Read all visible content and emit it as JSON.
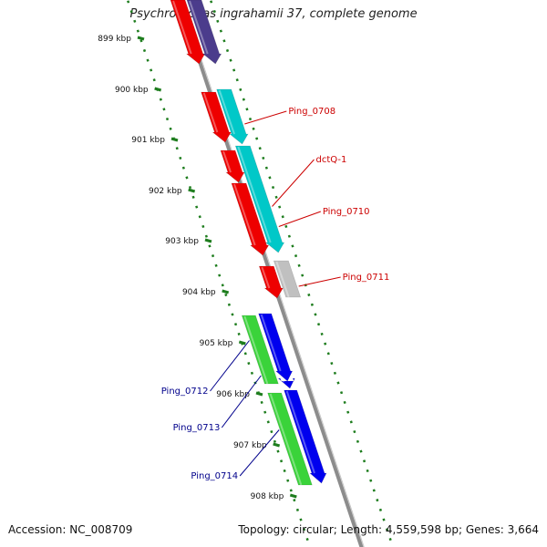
{
  "title": "Psychromonas ingrahamii 37, complete genome",
  "footer": {
    "accession": "Accession: NC_008709",
    "stats": "Topology: circular; Length: 4,559,598 bp; Genes: 3,664"
  },
  "colors": {
    "backbone": "#8c8c8c",
    "ruler": "#1e7d1e",
    "label_red": "#cc0000",
    "label_blue": "#00008b",
    "red": "#ee0000",
    "purple": "#4b3c8c",
    "cyan": "#00c8c8",
    "gray": "#c0c0c0",
    "green": "#3ad33a",
    "blue": "#0000ee"
  },
  "ruler": [
    "899 kbp",
    "900 kbp",
    "901 kbp",
    "902 kbp",
    "903 kbp",
    "904 kbp",
    "905 kbp",
    "906 kbp",
    "907 kbp",
    "908 kbp"
  ],
  "genes": [
    {
      "lane": "inner",
      "from": 0,
      "to": 70,
      "color": "red",
      "arrow": true,
      "label": ""
    },
    {
      "lane": "outer",
      "from": 0,
      "to": 70,
      "color": "purple",
      "arrow": true,
      "label": ""
    },
    {
      "lane": "inner",
      "from": 101,
      "to": 156,
      "color": "red",
      "arrow": true,
      "label": ""
    },
    {
      "lane": "outer",
      "from": 98,
      "to": 158,
      "color": "cyan",
      "arrow": true,
      "label": "Ping_0708"
    },
    {
      "lane": "inner",
      "from": 165,
      "to": 200,
      "color": "red",
      "arrow": true,
      "label": ""
    },
    {
      "lane": "outer",
      "from": 160,
      "to": 277,
      "color": "cyan",
      "arrow": true,
      "label": "dctQ-1"
    },
    {
      "lane": "inner",
      "from": 201,
      "to": 280,
      "color": "red",
      "arrow": true,
      "label": "Ping_0710"
    },
    {
      "lane": "inner",
      "from": 292,
      "to": 327,
      "color": "red",
      "arrow": true,
      "label": ""
    },
    {
      "lane": "outer",
      "from": 286,
      "to": 326,
      "color": "gray",
      "arrow": false,
      "label": "Ping_0711"
    },
    {
      "lane": "out2",
      "from": 346,
      "to": 421,
      "color": "green",
      "arrow": false,
      "label": "Ping_0712"
    },
    {
      "lane": "out3",
      "from": 344,
      "to": 418,
      "color": "blue",
      "arrow": true,
      "label": ""
    },
    {
      "lane": "out3",
      "from": 418,
      "to": 426,
      "color": "blue",
      "arrow": true,
      "label": "Ping_0713"
    },
    {
      "lane": "out2",
      "from": 431,
      "to": 532,
      "color": "green",
      "arrow": false,
      "label": "Ping_0714"
    },
    {
      "lane": "out3",
      "from": 428,
      "to": 530,
      "color": "blue",
      "arrow": true,
      "label": ""
    }
  ]
}
